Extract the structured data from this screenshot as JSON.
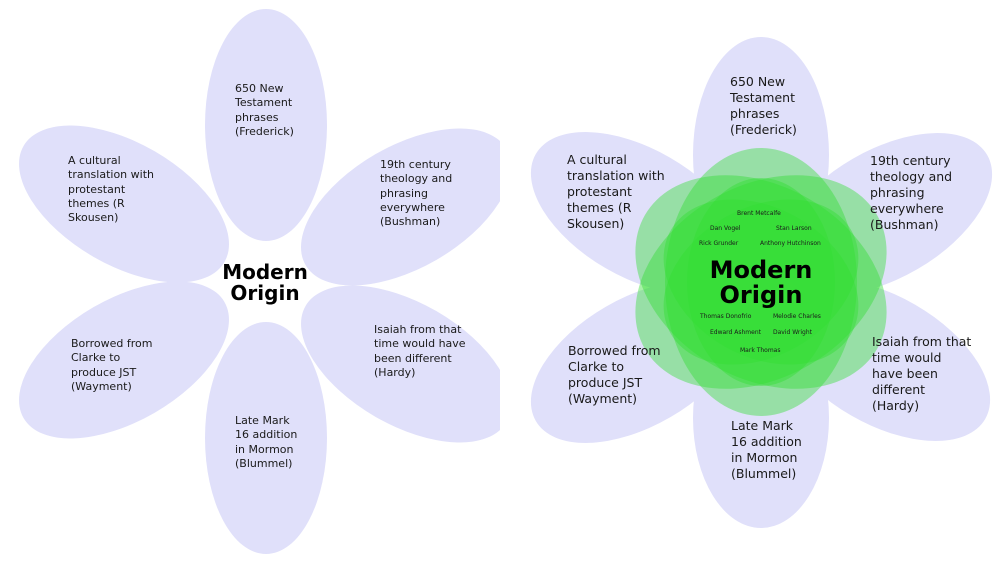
{
  "center_title": "Modern Origin",
  "petals": {
    "top": "650 New Testament phrases (Frederick)",
    "upper_right": "19th century theology and phrasing everywhere (Bushman)",
    "lower_right": "Isaiah from that time would have been different (Hardy)",
    "bottom": "Late Mark 16 addition in Mormon (Blummel)",
    "lower_left": "Borrowed from Clarke to produce JST (Wayment)",
    "upper_left": "A cultural translation with protestant themes (R Skousen)"
  },
  "names": {
    "metcalfe": "Brent Metcalfe",
    "vogel": "Dan Vogel",
    "larson": "Stan Larson",
    "grunder": "Rick Grunder",
    "hutchinson": "Anthony Hutchinson",
    "donofrio": "Thomas Donofrio",
    "charles": "Melodie Charles",
    "ashment": "Edward Ashment",
    "wright": "David Wright",
    "thomas": "Mark Thomas"
  },
  "colors": {
    "petal_fill": "#e0e0fa",
    "green_overlay": "#33dd33"
  }
}
